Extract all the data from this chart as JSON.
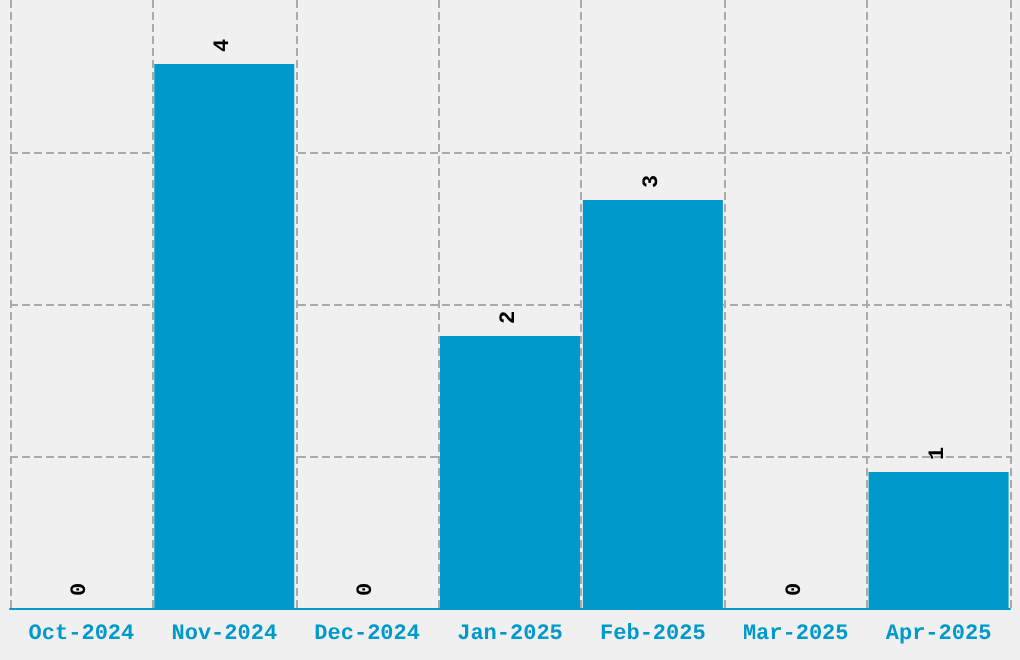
{
  "chart_data": {
    "type": "bar",
    "categories": [
      "Oct-2024",
      "Nov-2024",
      "Dec-2024",
      "Jan-2025",
      "Feb-2025",
      "Mar-2025",
      "Apr-2025"
    ],
    "values": [
      0,
      4,
      0,
      2,
      3,
      0,
      1
    ],
    "color": "#0099cc",
    "data_labels": true,
    "grid": true,
    "ylim": [
      0,
      4.47
    ],
    "yticks": [
      {
        "value": 1.1175,
        "label": null
      },
      {
        "value": 2.235,
        "label": null
      },
      {
        "value": 3.3525,
        "label": null
      }
    ],
    "tick_labels": "x"
  }
}
